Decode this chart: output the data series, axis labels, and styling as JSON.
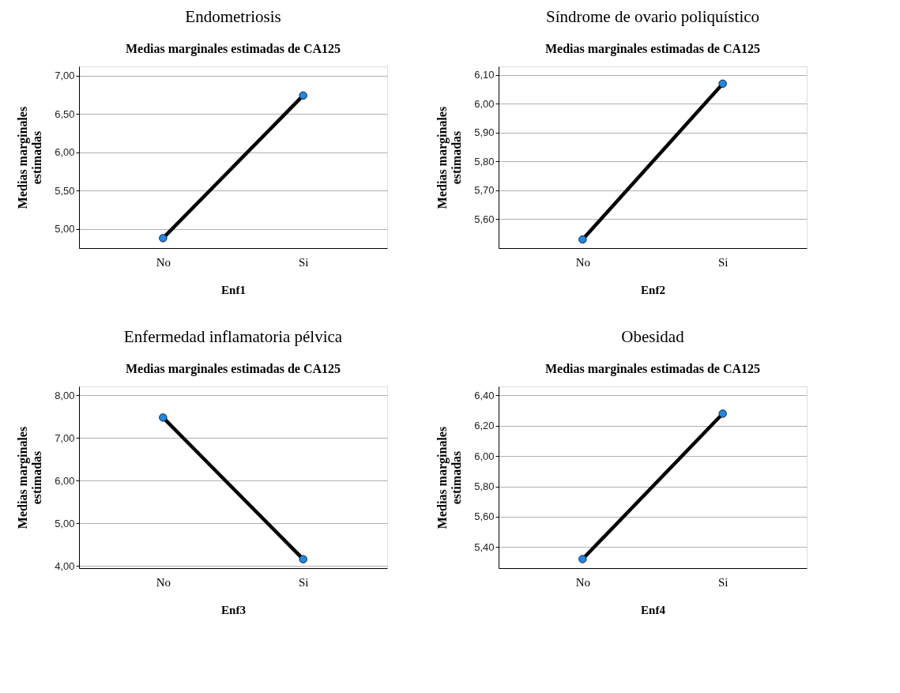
{
  "chart_data": [
    {
      "type": "line",
      "title": "Endometriosis",
      "subtitle": "Medias marginales estimadas de CA125",
      "xlabel": "Enf1",
      "ylabel": "Medias marginales estimadas",
      "categories": [
        "No",
        "Si"
      ],
      "series": [
        {
          "color": "#000000",
          "colors": [
            "#1a8ae6",
            "#1a8ae6"
          ],
          "values": [
            4.88,
            6.74
          ]
        }
      ],
      "ylim": [
        4.75,
        7.12
      ],
      "yticks": [
        {
          "value": 5,
          "label": "5,00"
        },
        {
          "value": 5.5,
          "label": "5,50"
        },
        {
          "value": 6,
          "label": "6,00"
        },
        {
          "value": 6.5,
          "label": "6,50"
        },
        {
          "value": 7,
          "label": "7,00"
        }
      ],
      "grid": "y",
      "marker": "circle",
      "line_style": "solid"
    },
    {
      "type": "line",
      "title": "Síndrome de ovario poliquístico",
      "subtitle": "Medias marginales estimadas de CA125",
      "xlabel": "Enf2",
      "ylabel": "Medias marginales estimadas",
      "categories": [
        "No",
        "Si"
      ],
      "series": [
        {
          "color": "#000000",
          "colors": [
            "#1a8ae6",
            "#1a8ae6"
          ],
          "values": [
            5.53,
            6.07
          ]
        }
      ],
      "ylim": [
        5.5,
        6.13
      ],
      "yticks": [
        {
          "value": 5.6,
          "label": "5,60"
        },
        {
          "value": 5.7,
          "label": "5,70"
        },
        {
          "value": 5.8,
          "label": "5,80"
        },
        {
          "value": 5.9,
          "label": "5,90"
        },
        {
          "value": 6,
          "label": "6,00"
        },
        {
          "value": 6.1,
          "label": "6,10"
        }
      ],
      "grid": "y",
      "marker": "circle",
      "line_style": "solid"
    },
    {
      "type": "line",
      "title": "Enfermedad inflamatoria pélvica",
      "subtitle": "Medias marginales estimadas de CA125",
      "xlabel": "Enf3",
      "ylabel": "Medias marginales estimadas",
      "categories": [
        "No",
        "Si"
      ],
      "series": [
        {
          "color": "#000000",
          "colors": [
            "#1a8ae6",
            "#1a8ae6"
          ],
          "values": [
            7.48,
            4.16
          ]
        }
      ],
      "ylim": [
        3.95,
        8.21
      ],
      "yticks": [
        {
          "value": 4,
          "label": "4,00"
        },
        {
          "value": 5,
          "label": "5,00"
        },
        {
          "value": 6,
          "label": "6,00"
        },
        {
          "value": 7,
          "label": "7,00"
        },
        {
          "value": 8,
          "label": "8,00"
        }
      ],
      "grid": "y",
      "marker": "circle",
      "line_style": "solid"
    },
    {
      "type": "line",
      "title": "Obesidad",
      "subtitle": "Medias marginales estimadas de CA125",
      "xlabel": "Enf4",
      "ylabel": "Medias marginales estimadas",
      "categories": [
        "No",
        "Si"
      ],
      "series": [
        {
          "color": "#000000",
          "colors": [
            "#1a8ae6",
            "#1a8ae6"
          ],
          "values": [
            5.32,
            6.28
          ]
        }
      ],
      "ylim": [
        5.26,
        6.46
      ],
      "yticks": [
        {
          "value": 5.4,
          "label": "5,40"
        },
        {
          "value": 5.6,
          "label": "5,60"
        },
        {
          "value": 5.8,
          "label": "5,80"
        },
        {
          "value": 6,
          "label": "6,00"
        },
        {
          "value": 6.2,
          "label": "6,20"
        },
        {
          "value": 6.4,
          "label": "6,40"
        }
      ],
      "grid": "y",
      "marker": "circle",
      "line_style": "solid"
    }
  ]
}
